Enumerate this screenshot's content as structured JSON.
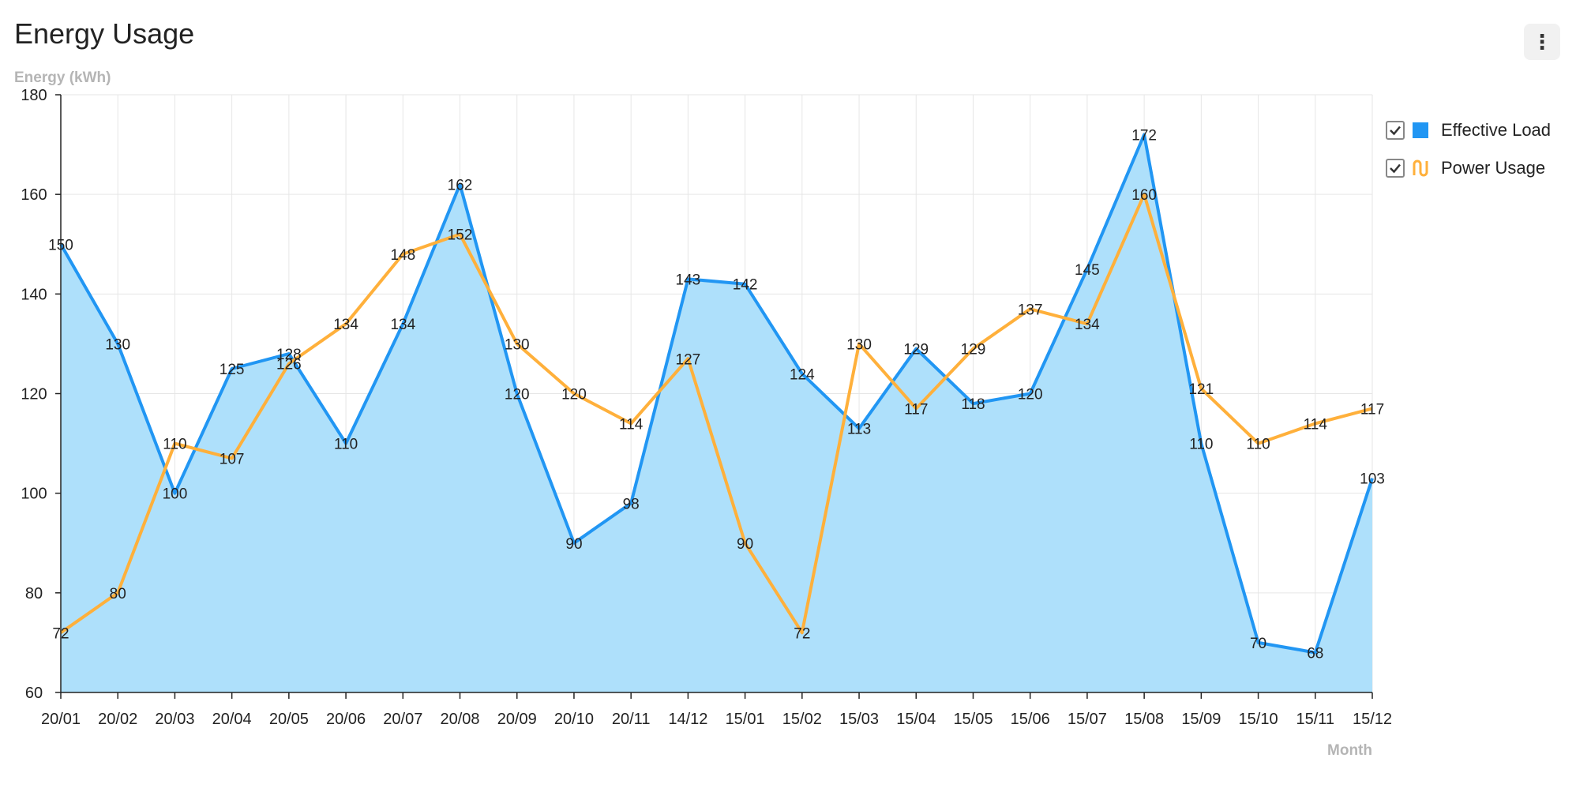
{
  "header": {
    "title": "Energy Usage",
    "menu_icon": "more-vertical-icon",
    "menu_glyph": "⋮"
  },
  "chart_data": {
    "type": "area",
    "title": "Energy Usage",
    "xlabel": "Month",
    "ylabel": "Energy (kWh)",
    "ylim": [
      60,
      180
    ],
    "yticks": [
      60,
      80,
      100,
      120,
      140,
      160,
      180
    ],
    "grid": true,
    "legend_position": "right",
    "categories": [
      "20/01",
      "20/02",
      "20/03",
      "20/04",
      "20/05",
      "20/06",
      "20/07",
      "20/08",
      "20/09",
      "20/10",
      "20/11",
      "14/12",
      "15/01",
      "15/02",
      "15/03",
      "15/04",
      "15/05",
      "15/06",
      "15/07",
      "15/08",
      "15/09",
      "15/10",
      "15/11",
      "15/12"
    ],
    "series": [
      {
        "name": "Effective Load",
        "type": "area",
        "color": "#2196f3",
        "fill": "#aee0fb",
        "values": [
          150,
          130,
          100,
          125,
          128,
          110,
          134,
          162,
          120,
          90,
          98,
          143,
          142,
          124,
          113,
          129,
          118,
          120,
          145,
          172,
          110,
          70,
          68,
          103
        ]
      },
      {
        "name": "Power Usage",
        "type": "line",
        "color": "#ffb03b",
        "values": [
          72,
          80,
          110,
          107,
          126,
          134,
          148,
          152,
          130,
          120,
          114,
          127,
          90,
          72,
          130,
          117,
          129,
          137,
          134,
          160,
          121,
          110,
          114,
          117
        ]
      }
    ]
  }
}
